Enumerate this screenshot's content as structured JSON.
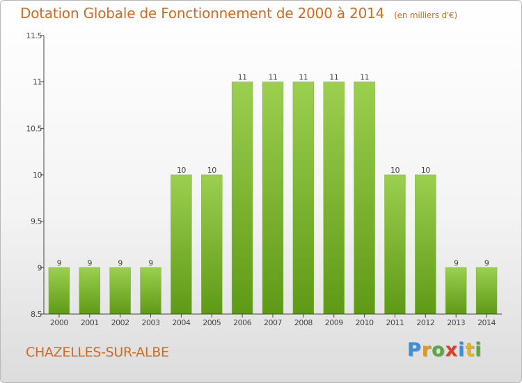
{
  "chart_data": {
    "type": "bar",
    "title": "Dotation Globale de Fonctionnement de 2000 à 2014",
    "subtitle": "(en milliers d'€)",
    "categories": [
      "2000",
      "2001",
      "2002",
      "2003",
      "2004",
      "2005",
      "2006",
      "2007",
      "2008",
      "2009",
      "2010",
      "2011",
      "2012",
      "2013",
      "2014"
    ],
    "values": [
      9,
      9,
      9,
      9,
      10,
      10,
      11,
      11,
      11,
      11,
      11,
      10,
      10,
      9,
      9
    ],
    "data_labels": [
      "9",
      "9",
      "9",
      "9",
      "10",
      "10",
      "11",
      "11",
      "11",
      "11",
      "11",
      "10",
      "10",
      "9",
      "9"
    ],
    "ylim": [
      8.5,
      11.5
    ],
    "yticks": [
      8.5,
      9,
      9.5,
      10,
      10.5,
      11,
      11.5
    ],
    "ytick_labels": [
      "8.5",
      "9",
      "9.5",
      "10",
      "10.5",
      "11",
      "11.5"
    ],
    "xlabel": "",
    "ylabel": "",
    "grid": false,
    "legend": "none",
    "colors": {
      "bar_light": "#9ccf4f",
      "bar_dark": "#5e9a16",
      "axis": "#444444",
      "text": "#444444"
    }
  },
  "commune": "CHAZELLES-SUR-ALBE",
  "logo": {
    "p": "P",
    "r": "r",
    "o": "o",
    "x": "x",
    "i": "i",
    "t": "t",
    "i2": "i"
  },
  "colors": {
    "accent": "#d4691e"
  }
}
